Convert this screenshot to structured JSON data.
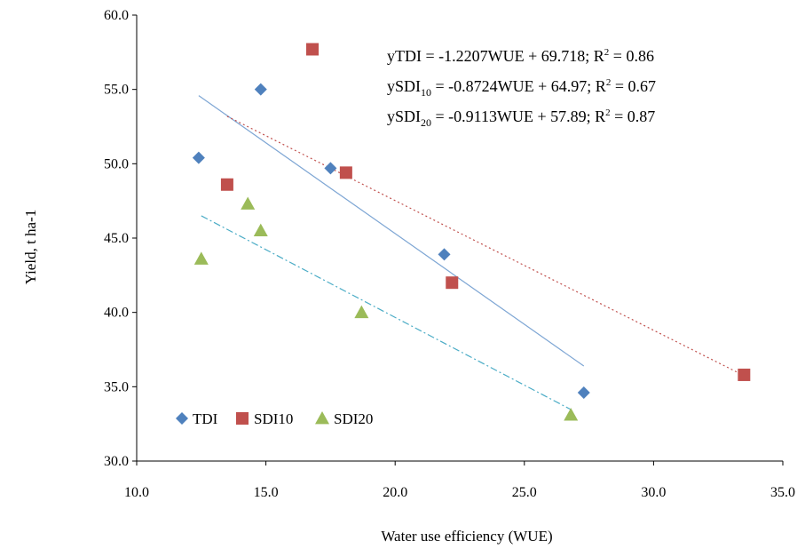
{
  "chart_data": {
    "type": "scatter",
    "xlabel": "Water use efficiency (WUE)",
    "ylabel": "Yield, t ha-1",
    "xlim": [
      10,
      35
    ],
    "ylim": [
      30,
      60
    ],
    "x_ticks": [
      "10.0",
      "15.0",
      "20.0",
      "25.0",
      "30.0",
      "35.0"
    ],
    "y_ticks": [
      "30.0",
      "35.0",
      "40.0",
      "45.0",
      "50.0",
      "55.0",
      "60.0"
    ],
    "grid": false,
    "legend_position": "bottom-left",
    "series": [
      {
        "name": "TDI",
        "marker": "diamond",
        "color": "#4f81bd",
        "points": [
          [
            12.4,
            50.4
          ],
          [
            14.8,
            55.0
          ],
          [
            17.5,
            49.7
          ],
          [
            21.9,
            43.9
          ],
          [
            27.3,
            34.6
          ]
        ],
        "trendline": {
          "x_range": [
            12.4,
            27.3
          ],
          "style": "solid",
          "color": "#7ea6d4"
        }
      },
      {
        "name": "SDI10",
        "marker": "square",
        "color": "#c0504d",
        "points": [
          [
            13.5,
            48.6
          ],
          [
            16.8,
            57.7
          ],
          [
            18.1,
            49.4
          ],
          [
            22.2,
            42.0
          ],
          [
            33.5,
            35.8
          ]
        ],
        "trendline": {
          "x_range": [
            13.5,
            33.5
          ],
          "style": "dotted",
          "color": "#c0504d"
        }
      },
      {
        "name": "SDI20",
        "marker": "triangle",
        "color": "#9bbb59",
        "points": [
          [
            12.5,
            43.6
          ],
          [
            14.3,
            47.3
          ],
          [
            14.8,
            45.5
          ],
          [
            18.7,
            40.0
          ],
          [
            26.8,
            33.1
          ]
        ],
        "trendline": {
          "x_range": [
            12.5,
            26.8
          ],
          "style": "dash-dot",
          "color": "#4bacc6"
        }
      }
    ],
    "equations": [
      {
        "base": "yTDI",
        "sub": "",
        "rest": " = -1.2207WUE + 69.718; R",
        "sup": "2",
        "tail": " = 0.86"
      },
      {
        "base": "ySDI",
        "sub": "10",
        "rest": " = -0.8724WUE + 64.97; R",
        "sup": "2",
        "tail": " = 0.67"
      },
      {
        "base": "ySDI",
        "sub": "20",
        "rest": " = -0.9113WUE + 57.89; R",
        "sup": "2",
        "tail": " = 0.87"
      }
    ]
  }
}
